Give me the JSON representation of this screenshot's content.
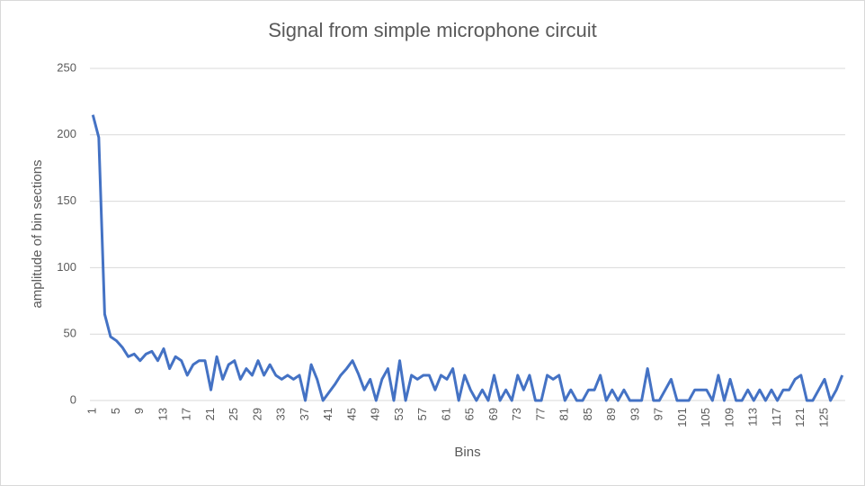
{
  "chart_data": {
    "type": "line",
    "title": "Signal from simple microphone circuit",
    "x_label": "Bins",
    "y_label": "amplitude of bin sections",
    "x": [
      1,
      2,
      3,
      4,
      5,
      6,
      7,
      8,
      9,
      10,
      11,
      12,
      13,
      14,
      15,
      16,
      17,
      18,
      19,
      20,
      21,
      22,
      23,
      24,
      25,
      26,
      27,
      28,
      29,
      30,
      31,
      32,
      33,
      34,
      35,
      36,
      37,
      38,
      39,
      40,
      41,
      42,
      43,
      44,
      45,
      46,
      47,
      48,
      49,
      50,
      51,
      52,
      53,
      54,
      55,
      56,
      57,
      58,
      59,
      60,
      61,
      62,
      63,
      64,
      65,
      66,
      67,
      68,
      69,
      70,
      71,
      72,
      73,
      74,
      75,
      76,
      77,
      78,
      79,
      80,
      81,
      82,
      83,
      84,
      85,
      86,
      87,
      88,
      89,
      90,
      91,
      92,
      93,
      94,
      95,
      96,
      97,
      98,
      99,
      100,
      101,
      102,
      103,
      104,
      105,
      106,
      107,
      108,
      109,
      110,
      111,
      112,
      113,
      114,
      115,
      116,
      117,
      118,
      119,
      120,
      121,
      122,
      123,
      124,
      125,
      126,
      127,
      128
    ],
    "series": [
      {
        "name": "amplitude",
        "color": "#4472c4",
        "values": [
          215,
          198,
          65,
          48,
          45,
          40,
          33,
          35,
          30,
          35,
          37,
          30,
          39,
          24,
          33,
          30,
          19,
          27,
          30,
          30,
          8,
          33,
          16,
          27,
          30,
          16,
          24,
          19,
          30,
          19,
          27,
          19,
          16,
          19,
          16,
          19,
          0,
          27,
          16,
          0,
          6,
          12,
          19,
          24,
          30,
          20,
          8,
          16,
          0,
          16,
          24,
          0,
          30,
          0,
          19,
          16,
          19,
          19,
          8,
          19,
          16,
          24,
          0,
          19,
          8,
          0,
          8,
          0,
          19,
          0,
          8,
          0,
          19,
          8,
          19,
          0,
          0,
          19,
          16,
          19,
          0,
          8,
          0,
          0,
          8,
          8,
          19,
          0,
          8,
          0,
          8,
          0,
          0,
          0,
          24,
          0,
          0,
          8,
          16,
          0,
          0,
          0,
          8,
          8,
          8,
          0,
          19,
          0,
          16,
          0,
          0,
          8,
          0,
          8,
          0,
          8,
          0,
          8,
          8,
          16,
          19,
          0,
          0,
          8,
          16,
          0,
          8,
          19
        ]
      }
    ],
    "xlim": [
      0.5,
      128.5
    ],
    "xticks": [
      1,
      5,
      9,
      13,
      17,
      21,
      25,
      29,
      33,
      37,
      41,
      45,
      49,
      53,
      57,
      61,
      65,
      69,
      73,
      77,
      81,
      85,
      89,
      93,
      97,
      101,
      105,
      109,
      113,
      117,
      121,
      125
    ],
    "ylim": [
      0,
      250
    ],
    "yticks": [
      0,
      50,
      100,
      150,
      200,
      250
    ],
    "grid": true
  }
}
